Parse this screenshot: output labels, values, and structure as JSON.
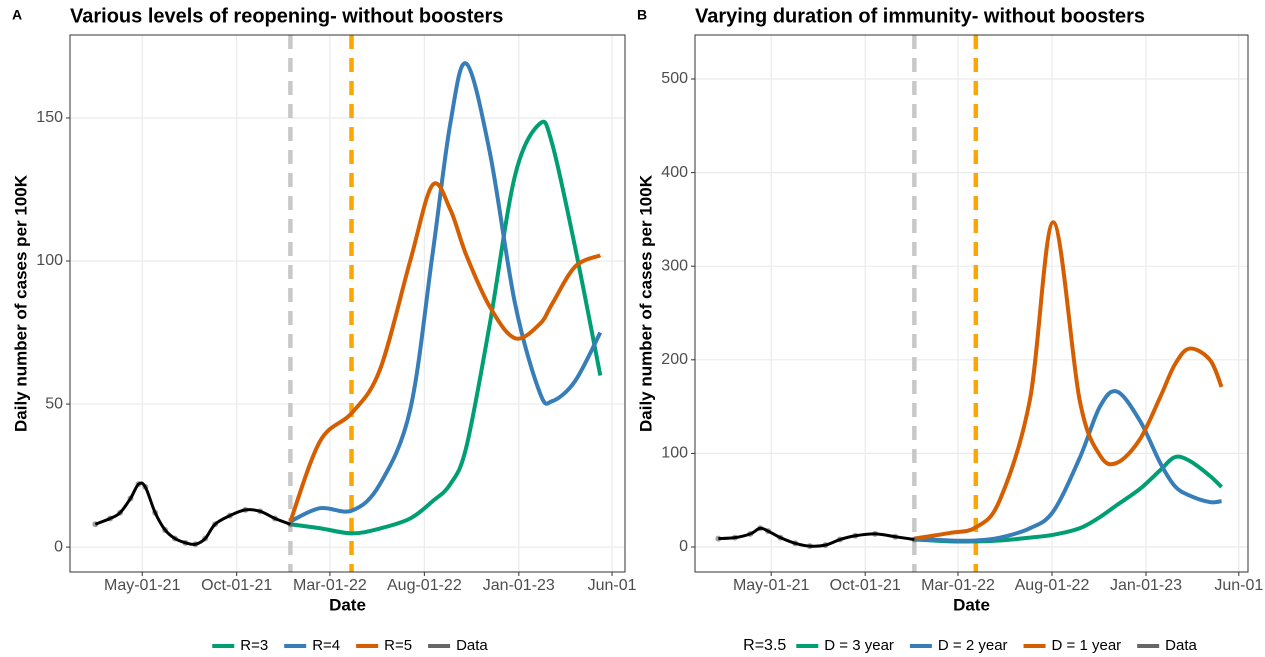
{
  "chart_data": [
    {
      "type": "line",
      "panel_label": "A",
      "title": "Various levels of reopening- without boosters",
      "x_label": "Date",
      "y_label": "Daily number of cases per 100K",
      "xlim": [
        "2021-01-04",
        "2023-06-22"
      ],
      "xticks": [
        {
          "value": "2021-05-01",
          "label": "May-01-21"
        },
        {
          "value": "2021-10-01",
          "label": "Oct-01-21"
        },
        {
          "value": "2022-03-01",
          "label": "Mar-01-22"
        },
        {
          "value": "2022-08-01",
          "label": "Aug-01-22"
        },
        {
          "value": "2023-01-01",
          "label": "Jan-01-23"
        },
        {
          "value": "2023-06-01",
          "label": "Jun-01"
        }
      ],
      "ylim": [
        -8.7,
        179
      ],
      "yticks": [
        0,
        50,
        100,
        150
      ],
      "grid": true,
      "legend": "bottom",
      "vlines": [
        {
          "x": "2021-12-27",
          "color": "#c8c8c8"
        },
        {
          "x": "2022-04-05",
          "color": "#ffa500"
        }
      ],
      "series": [
        {
          "name": "R=3",
          "color": "#009e73",
          "x": [
            "2021-12-27",
            "2022-02-13",
            "2022-04-06",
            "2022-05-21",
            "2022-07-09",
            "2022-08-14",
            "2022-09-12",
            "2022-10-08",
            "2022-11-15",
            "2022-12-26",
            "2023-02-04",
            "2023-02-24",
            "2023-04-02",
            "2023-05-13"
          ],
          "values": [
            8,
            6.6,
            4.8,
            6.5,
            10,
            16,
            22,
            35,
            78,
            130,
            148,
            141,
            105,
            60
          ]
        },
        {
          "name": "R=4",
          "color": "#377eb8",
          "x": [
            "2021-12-27",
            "2022-02-13",
            "2022-04-06",
            "2022-05-21",
            "2022-07-09",
            "2022-08-14",
            "2022-09-12",
            "2022-10-08",
            "2022-11-15",
            "2022-12-26",
            "2023-02-04",
            "2023-02-24",
            "2023-04-02",
            "2023-05-13"
          ],
          "values": [
            9,
            13.6,
            12.8,
            22,
            48,
            102,
            148,
            169,
            138,
            85,
            54,
            51,
            58,
            75
          ]
        },
        {
          "name": "R=5",
          "color": "#d55e00",
          "x": [
            "2021-12-27",
            "2022-02-13",
            "2022-04-06",
            "2022-05-21",
            "2022-07-09",
            "2022-08-14",
            "2022-09-12",
            "2022-10-08",
            "2022-11-15",
            "2022-12-26",
            "2023-02-04",
            "2023-02-24",
            "2023-04-02",
            "2023-05-13"
          ],
          "values": [
            9,
            37,
            47,
            62,
            100,
            126.5,
            118,
            102,
            84,
            73,
            78,
            85,
            98,
            102
          ]
        },
        {
          "name": "Data",
          "color": "#666666",
          "line_color": "#000000",
          "x": [
            "2021-02-14",
            "2021-03-10",
            "2021-03-26",
            "2021-04-12",
            "2021-04-25",
            "2021-05-06",
            "2021-05-22",
            "2021-06-07",
            "2021-06-23",
            "2021-07-10",
            "2021-07-26",
            "2021-08-11",
            "2021-08-27",
            "2021-09-20",
            "2021-10-15",
            "2021-11-08",
            "2021-12-02",
            "2021-12-27"
          ],
          "values": [
            8,
            10,
            12,
            17,
            22,
            21,
            12,
            6,
            3,
            1.5,
            1,
            3,
            8,
            11,
            13,
            12.5,
            10,
            8
          ]
        }
      ]
    },
    {
      "type": "line",
      "panel_label": "B",
      "title": "Varying duration of immunity- without boosters",
      "x_label": "Date",
      "y_label": "Daily number of cases per 100K",
      "legend_title": "R=3.5",
      "xlim": [
        "2020-12-28",
        "2023-06-16"
      ],
      "xticks": [
        {
          "value": "2021-05-01",
          "label": "May-01-21"
        },
        {
          "value": "2021-10-01",
          "label": "Oct-01-21"
        },
        {
          "value": "2022-03-01",
          "label": "Mar-01-22"
        },
        {
          "value": "2022-08-01",
          "label": "Aug-01-22"
        },
        {
          "value": "2023-01-01",
          "label": "Jan-01-23"
        },
        {
          "value": "2023-06-01",
          "label": "Jun-01"
        }
      ],
      "ylim": [
        -26.7,
        547
      ],
      "yticks": [
        0,
        100,
        200,
        300,
        400,
        500
      ],
      "grid": true,
      "legend": "bottom",
      "vlines": [
        {
          "x": "2021-12-20",
          "color": "#c8c8c8"
        },
        {
          "x": "2022-03-30",
          "color": "#ffa500"
        }
      ],
      "series": [
        {
          "name": "D = 3 year",
          "color": "#009e73",
          "x": [
            "2021-12-20",
            "2022-02-16",
            "2022-03-30",
            "2022-05-08",
            "2022-06-26",
            "2022-08-03",
            "2022-09-15",
            "2022-10-18",
            "2022-11-15",
            "2022-12-22",
            "2023-01-24",
            "2023-02-17",
            "2023-03-13",
            "2023-04-15",
            "2023-05-04"
          ],
          "values": [
            8,
            6,
            6,
            7,
            10,
            13,
            20,
            32,
            45,
            62,
            82,
            96,
            92,
            76,
            64
          ]
        },
        {
          "name": "D = 2 year",
          "color": "#377eb8",
          "x": [
            "2021-12-20",
            "2022-02-16",
            "2022-03-30",
            "2022-05-08",
            "2022-06-26",
            "2022-08-03",
            "2022-09-15",
            "2022-10-18",
            "2022-11-15",
            "2022-12-22",
            "2023-01-24",
            "2023-02-17",
            "2023-03-13",
            "2023-04-15",
            "2023-05-04"
          ],
          "values": [
            9,
            7,
            7,
            10,
            20,
            38,
            95,
            150,
            166,
            135,
            90,
            65,
            55,
            48,
            49
          ]
        },
        {
          "name": "D = 1 year",
          "color": "#d55e00",
          "x": [
            "2021-12-20",
            "2022-02-16",
            "2022-03-30",
            "2022-05-08",
            "2022-06-26",
            "2022-08-03",
            "2022-09-15",
            "2022-10-18",
            "2022-11-15",
            "2022-12-22",
            "2023-01-24",
            "2023-02-17",
            "2023-03-13",
            "2023-04-15",
            "2023-05-04"
          ],
          "values": [
            9,
            15,
            21,
            50,
            157,
            347,
            157,
            98,
            90,
            115,
            160,
            195,
            212,
            200,
            171
          ]
        },
        {
          "name": "Data",
          "color": "#666666",
          "line_color": "#000000",
          "x": [
            "2021-02-04",
            "2021-03-03",
            "2021-03-28",
            "2021-04-13",
            "2021-04-26",
            "2021-05-16",
            "2021-06-09",
            "2021-07-03",
            "2021-07-28",
            "2021-08-21",
            "2021-09-15",
            "2021-10-17",
            "2021-11-19",
            "2021-12-20"
          ],
          "values": [
            9,
            10,
            14,
            20,
            17,
            10,
            4,
            1,
            2,
            8,
            12,
            14,
            11,
            8
          ]
        }
      ]
    }
  ]
}
